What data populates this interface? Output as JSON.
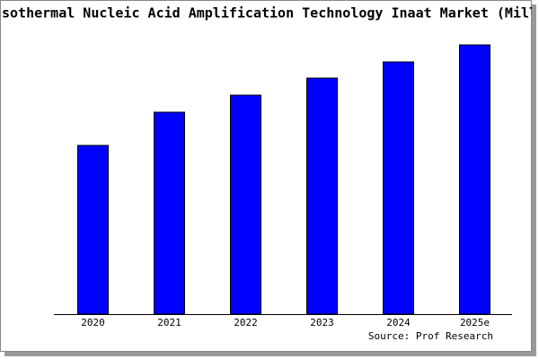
{
  "chart_data": {
    "type": "bar",
    "title": "sothermal Nucleic Acid Amplification Technology Inaat Market (Mill",
    "categories": [
      "2020",
      "2021",
      "2022",
      "2023",
      "2024",
      "2025e"
    ],
    "values": [
      188,
      225,
      244,
      263,
      281,
      300
    ],
    "color": "#0000ff",
    "ylim": [
      0,
      300
    ],
    "source": "Source: Prof Research"
  }
}
